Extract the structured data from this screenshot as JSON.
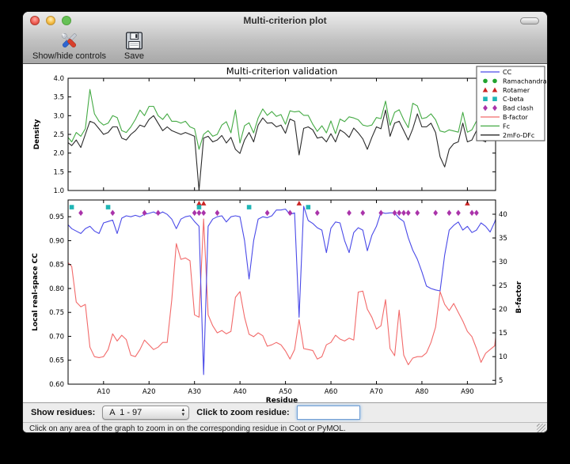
{
  "window": {
    "title": "Multi-criterion plot"
  },
  "toolbar": {
    "show_hide_label": "Show/hide controls",
    "save_label": "Save"
  },
  "controls": {
    "show_residues_label": "Show residues:",
    "range_value": "A  1 - 97",
    "zoom_label": "Click to zoom residue:",
    "zoom_input_value": ""
  },
  "statusbar": {
    "text": "Click on any area of the graph to zoom in on the corresponding residue in Coot or PyMOL."
  },
  "chart_data": {
    "type": "line",
    "title": "Multi-criterion validation",
    "xlabel": "Residue",
    "x_start": 1,
    "xlim": [
      2.2,
      96.2
    ],
    "xticks": {
      "labels": [
        "A10",
        "A20",
        "A30",
        "A40",
        "A50",
        "A60",
        "A70",
        "A80",
        "A90"
      ],
      "values": [
        10,
        20,
        30,
        40,
        50,
        60,
        70,
        80,
        90
      ]
    },
    "top": {
      "ylabel": "Density",
      "ylim": [
        1.0,
        4.0
      ],
      "yticks": {
        "labels": [
          "4.0",
          "3.5",
          "3.0",
          "2.5",
          "2.0",
          "1.5",
          "1.0"
        ],
        "values": [
          4.0,
          3.5,
          3.0,
          2.5,
          2.0,
          1.5,
          1.0
        ]
      },
      "series": [
        {
          "name": "Fc",
          "color": "#44aa44",
          "values": [
            1.9,
            2.45,
            2.3,
            2.55,
            2.45,
            2.65,
            3.7,
            3.05,
            2.85,
            2.75,
            2.8,
            3.0,
            2.95,
            2.6,
            2.55,
            2.7,
            2.9,
            3.15,
            3.0,
            3.25,
            3.25,
            3.0,
            2.9,
            3.05,
            2.85,
            2.85,
            2.8,
            2.85,
            2.7,
            2.65,
            2.1,
            2.5,
            2.6,
            2.45,
            2.5,
            2.75,
            2.84,
            2.54,
            3.15,
            2.27,
            2.73,
            2.81,
            2.54,
            2.94,
            3.18,
            3.01,
            3.11,
            2.98,
            3.03,
            2.77,
            3.13,
            3.1,
            3.12,
            3.01,
            3.01,
            2.77,
            2.58,
            2.73,
            2.54,
            2.86,
            2.52,
            2.91,
            2.84,
            2.97,
            2.94,
            2.89,
            2.75,
            2.72,
            2.75,
            2.95,
            2.92,
            3.39,
            2.74,
            3.09,
            3.16,
            2.89,
            2.68,
            3.33,
            3.26,
            2.92,
            2.95,
            3.05,
            2.89,
            2.59,
            2.56,
            2.62,
            2.59,
            2.56,
            3.09,
            2.56,
            2.62,
            2.86,
            2.62,
            2.56,
            2.96,
            2.92,
            3.43
          ]
        },
        {
          "name": "2mFo-DFc",
          "color": "#2a2a2a",
          "values": [
            1.55,
            2.3,
            2.2,
            2.35,
            2.15,
            2.5,
            2.85,
            2.8,
            2.65,
            2.5,
            2.55,
            2.7,
            2.7,
            2.4,
            2.35,
            2.5,
            2.6,
            2.75,
            2.7,
            2.9,
            3.0,
            2.8,
            2.6,
            2.7,
            2.6,
            2.55,
            2.5,
            2.55,
            2.5,
            2.45,
            1.0,
            2.4,
            2.45,
            2.3,
            2.35,
            2.47,
            2.27,
            2.42,
            2.1,
            1.99,
            2.35,
            2.55,
            2.3,
            2.75,
            2.94,
            2.8,
            2.81,
            2.7,
            2.75,
            2.53,
            2.91,
            2.85,
            1.95,
            2.66,
            2.7,
            2.62,
            2.4,
            2.43,
            2.3,
            2.52,
            2.3,
            2.62,
            2.54,
            2.42,
            2.67,
            2.54,
            2.38,
            2.1,
            2.42,
            2.7,
            2.65,
            3.15,
            2.45,
            2.8,
            2.85,
            2.6,
            2.35,
            2.65,
            3.05,
            2.7,
            2.7,
            2.8,
            2.55,
            1.9,
            1.63,
            2.1,
            2.25,
            2.3,
            2.8,
            2.3,
            2.35,
            2.6,
            2.35,
            2.3,
            2.65,
            2.6,
            2.86
          ]
        }
      ]
    },
    "bottom": {
      "ylabel_left": "Local real-space CC",
      "ylim_left": [
        0.6,
        0.985
      ],
      "yticks_left": {
        "labels": [
          "0.95",
          "0.90",
          "0.85",
          "0.80",
          "0.75",
          "0.70",
          "0.65",
          "0.60"
        ],
        "values": [
          0.95,
          0.9,
          0.85,
          0.8,
          0.75,
          0.7,
          0.65,
          0.6
        ]
      },
      "ylabel_right": "B-factor",
      "ylim_right": [
        4.2,
        43.0
      ],
      "yticks_right": {
        "labels": [
          "40",
          "35",
          "30",
          "25",
          "20",
          "15",
          "10",
          "5"
        ],
        "values": [
          40,
          35,
          30,
          25,
          20,
          15,
          10,
          5
        ]
      },
      "series_left": {
        "name": "CC",
        "color": "#4a4ae8",
        "values": [
          0.85,
          0.935,
          0.925,
          0.92,
          0.915,
          0.925,
          0.93,
          0.92,
          0.915,
          0.937,
          0.94,
          0.943,
          0.915,
          0.947,
          0.952,
          0.95,
          0.953,
          0.95,
          0.955,
          0.957,
          0.96,
          0.955,
          0.96,
          0.955,
          0.945,
          0.925,
          0.945,
          0.95,
          0.952,
          0.94,
          0.93,
          0.62,
          0.93,
          0.945,
          0.95,
          0.952,
          0.939,
          0.95,
          0.952,
          0.95,
          0.9,
          0.82,
          0.9,
          0.945,
          0.95,
          0.948,
          0.952,
          0.964,
          0.964,
          0.966,
          0.955,
          0.958,
          0.74,
          0.972,
          0.942,
          0.936,
          0.927,
          0.922,
          0.875,
          0.926,
          0.939,
          0.937,
          0.9,
          0.875,
          0.917,
          0.927,
          0.922,
          0.879,
          0.911,
          0.93,
          0.959,
          0.957,
          0.958,
          0.958,
          0.947,
          0.94,
          0.906,
          0.88,
          0.861,
          0.835,
          0.805,
          0.8,
          0.797,
          0.795,
          0.87,
          0.922,
          0.932,
          0.939,
          0.922,
          0.93,
          0.917,
          0.922,
          0.937,
          0.93,
          0.918,
          0.939,
          0.969
        ]
      },
      "series_right": {
        "name": "B-factor",
        "color": "#f26a6a",
        "values": [
          34.0,
          30.0,
          29.0,
          21.5,
          20.5,
          21.0,
          12.0,
          10.0,
          9.8,
          10.0,
          11.5,
          14.8,
          13.3,
          14.5,
          13.6,
          10.3,
          10.0,
          11.5,
          13.5,
          12.5,
          11.5,
          12.0,
          13.0,
          13.0,
          22.0,
          33.8,
          30.5,
          30.8,
          30.2,
          18.8,
          18.3,
          39.0,
          18.8,
          16.5,
          15.0,
          15.5,
          14.8,
          15.3,
          22.5,
          23.7,
          18.3,
          14.7,
          14.2,
          15.0,
          14.4,
          12.2,
          12.5,
          13.0,
          12.5,
          11.2,
          9.5,
          11.5,
          17.8,
          11.7,
          11.5,
          11.3,
          9.5,
          10.0,
          12.5,
          13.0,
          14.5,
          13.7,
          13.3,
          13.9,
          13.5,
          23.6,
          23.8,
          20.0,
          18.3,
          15.8,
          16.5,
          22.0,
          11.7,
          10.2,
          19.8,
          10.3,
          8.3,
          9.7,
          10.0,
          10.0,
          10.8,
          13.0,
          16.2,
          23.7,
          21.0,
          19.7,
          21.2,
          19.3,
          17.5,
          15.3,
          14.2,
          11.7,
          8.8,
          10.7,
          11.5,
          12.3,
          21.0
        ]
      },
      "outlier_markers": {
        "ramachandran": {
          "glyph": "circle",
          "color": "#22a32f",
          "y": 0.978,
          "residues": []
        },
        "rotamer": {
          "glyph": "triangle",
          "color": "#cc2525",
          "y": 0.978,
          "residues": [
            31,
            32,
            53,
            90
          ]
        },
        "c_beta": {
          "glyph": "square",
          "color": "#1fb5b5",
          "y": 0.97,
          "residues": [
            3,
            11,
            31,
            42,
            55
          ]
        },
        "bad_clash": {
          "glyph": "diamond",
          "color": "#aa33aa",
          "y": 0.958,
          "residues": [
            5,
            12,
            19,
            22,
            30,
            31,
            32,
            35,
            46,
            51,
            57,
            64,
            67,
            71,
            74,
            75,
            76,
            77,
            79,
            83,
            86,
            88,
            91,
            92
          ]
        }
      }
    },
    "legend": [
      {
        "label": "CC",
        "glyph": "line",
        "color": "#4a4ae8"
      },
      {
        "label": "Ramachandran",
        "glyph": "circle",
        "color": "#22a32f"
      },
      {
        "label": "Rotamer",
        "glyph": "triangle",
        "color": "#cc2525"
      },
      {
        "label": "C-beta",
        "glyph": "square",
        "color": "#1fb5b5"
      },
      {
        "label": "Bad clash",
        "glyph": "diamond",
        "color": "#aa33aa"
      },
      {
        "label": "B-factor",
        "glyph": "line",
        "color": "#f26a6a"
      },
      {
        "label": "Fc",
        "glyph": "line",
        "color": "#44aa44"
      },
      {
        "label": "2mFo-DFc",
        "glyph": "line",
        "color": "#2a2a2a"
      }
    ]
  }
}
